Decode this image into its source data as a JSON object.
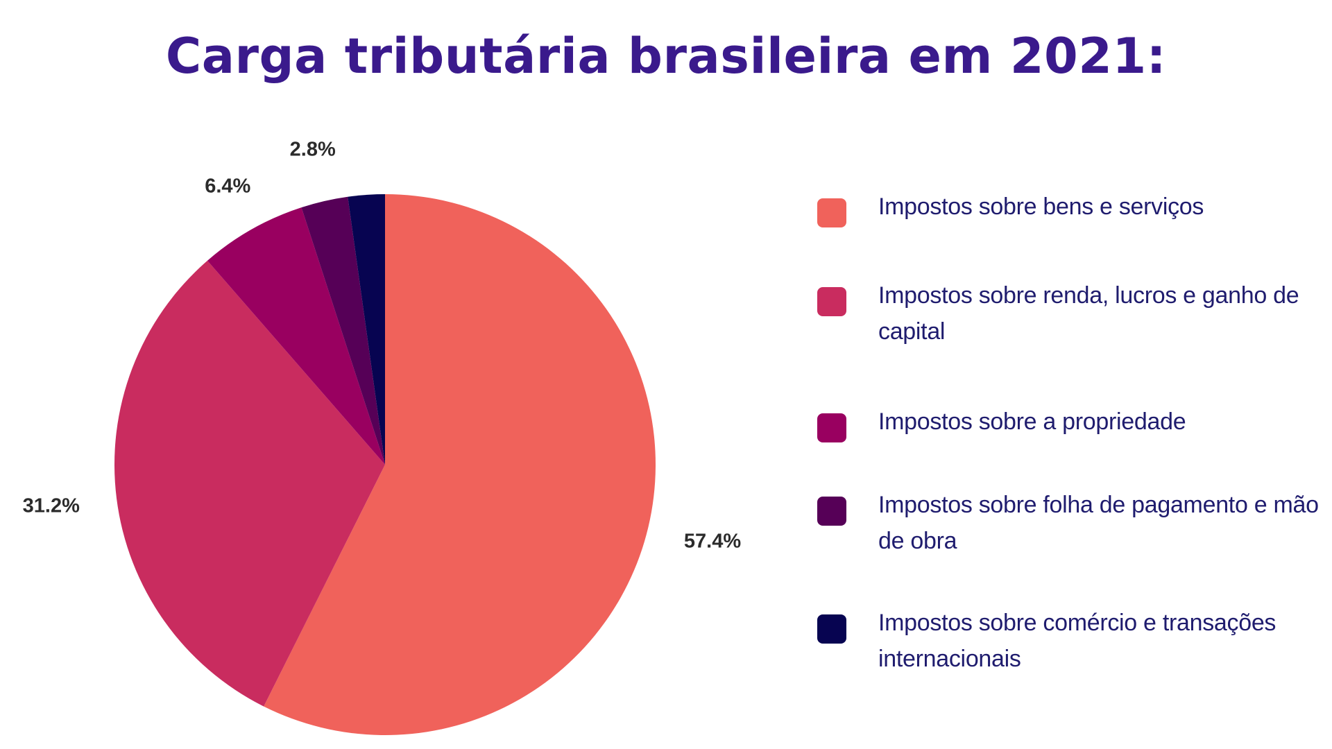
{
  "chart_data": {
    "type": "pie",
    "title": "Carga tributária brasileira em 2021:",
    "legend_position": "right",
    "start_angle_deg": 0,
    "direction": "clockwise",
    "slices": [
      {
        "name": "Impostos sobre bens e serviços",
        "value": 57.4,
        "label": "57.4%",
        "color": "#f0625b"
      },
      {
        "name": "Impostos sobre renda, lucros e ganho de capital",
        "value": 31.2,
        "label": "31.2%",
        "color": "#c92c5f"
      },
      {
        "name": "Impostos sobre a propriedade",
        "value": 6.4,
        "label": "6.4%",
        "color": "#990060"
      },
      {
        "name": "Impostos sobre folha de pagamento e mão de obra",
        "value": 2.8,
        "label": "2.8%",
        "color": "#560057"
      },
      {
        "name": "Impostos sobre comércio e transações internacionais",
        "value": 2.2,
        "label": "",
        "color": "#070451"
      }
    ]
  }
}
